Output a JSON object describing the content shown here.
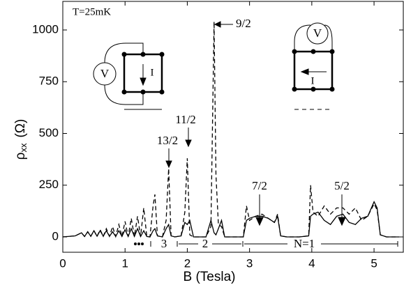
{
  "chart_data": {
    "type": "line",
    "y_label": {
      "symbol": "ρ",
      "sub": "xx",
      "unit": "(Ω)"
    },
    "x_label": "B  (Tesla)",
    "x": [
      0,
      0.2,
      0.3,
      0.35,
      0.4,
      0.45,
      0.5,
      0.55,
      0.6,
      0.65,
      0.7,
      0.75,
      0.8,
      0.85,
      0.9,
      0.95,
      1.0,
      1.05,
      1.1,
      1.15,
      1.2,
      1.25,
      1.3,
      1.35,
      1.4,
      1.45,
      1.48,
      1.52,
      1.6,
      1.66,
      1.7,
      1.74,
      1.8,
      1.9,
      1.96,
      2.0,
      2.04,
      2.1,
      2.2,
      2.3,
      2.38,
      2.43,
      2.46,
      2.5,
      2.55,
      2.6,
      2.7,
      2.8,
      2.9,
      2.95,
      3.0,
      3.1,
      3.2,
      3.3,
      3.4,
      3.45,
      3.5,
      3.6,
      3.8,
      3.95,
      3.98,
      4.02,
      4.1,
      4.2,
      4.3,
      4.4,
      4.5,
      4.6,
      4.7,
      4.8,
      4.9,
      5.0,
      5.05,
      5.1,
      5.2,
      5.4
    ],
    "series": [
      {
        "color": "#000000",
        "dashed": true,
        "values": [
          0,
          5,
          20,
          2,
          25,
          3,
          30,
          3,
          35,
          3,
          40,
          3,
          50,
          2,
          60,
          2,
          75,
          2,
          90,
          2,
          100,
          2,
          140,
          2,
          0,
          150,
          205,
          5,
          0,
          80,
          330,
          5,
          0,
          5,
          120,
          380,
          10,
          0,
          0,
          0,
          50,
          1040,
          300,
          60,
          50,
          0,
          0,
          0,
          0,
          150,
          80,
          100,
          110,
          90,
          70,
          110,
          5,
          0,
          0,
          5,
          250,
          120,
          100,
          150,
          110,
          140,
          140,
          110,
          140,
          80,
          100,
          160,
          130,
          10,
          0,
          0
        ]
      },
      {
        "color": "#000000",
        "dashed": false,
        "values": [
          0,
          5,
          20,
          2,
          25,
          3,
          30,
          3,
          30,
          3,
          30,
          3,
          25,
          2,
          30,
          2,
          35,
          2,
          40,
          2,
          40,
          2,
          30,
          2,
          0,
          30,
          40,
          5,
          0,
          40,
          60,
          5,
          0,
          5,
          70,
          60,
          80,
          0,
          0,
          0,
          80,
          20,
          10,
          40,
          80,
          0,
          0,
          0,
          0,
          80,
          90,
          100,
          100,
          90,
          70,
          100,
          5,
          0,
          0,
          5,
          100,
          110,
          120,
          80,
          60,
          100,
          110,
          70,
          60,
          90,
          100,
          170,
          140,
          10,
          0,
          0
        ]
      }
    ],
    "xlim": [
      0,
      5.47
    ],
    "ylim": [
      -74,
      1138
    ],
    "xticks": [
      0,
      1,
      2,
      3,
      4,
      5
    ],
    "yticks": [
      0,
      250,
      500,
      750,
      1000
    ],
    "annotations": [
      "T=25mK",
      "9/2",
      "11/2",
      "13/2",
      "7/2",
      "5/2"
    ],
    "filling_labels": [
      "3",
      "2",
      "N=1"
    ],
    "inset_labels": [
      "V",
      "I",
      "V",
      "I"
    ]
  }
}
